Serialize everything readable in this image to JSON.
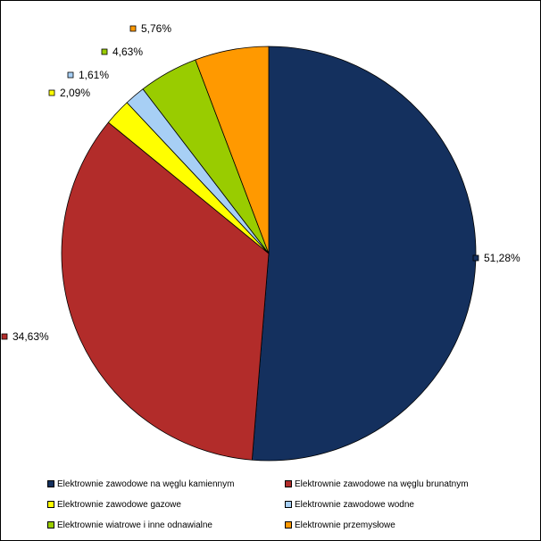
{
  "chart_data": {
    "type": "pie",
    "title": "",
    "start_angle_deg": 0,
    "direction": "clockwise",
    "legend_position": "bottom",
    "slices": [
      {
        "label": "Elektrownie zawodowe na węglu kamiennym",
        "value": 51.28,
        "value_label": "51,28%",
        "color": "#14305e"
      },
      {
        "label": "Elektrownie zawodowe na węglu brunatnym",
        "value": 34.63,
        "value_label": "34,63%",
        "color": "#b22c2a"
      },
      {
        "label": "Elektrownie zawodowe gazowe",
        "value": 2.09,
        "value_label": "2,09%",
        "color": "#ffff00"
      },
      {
        "label": "Elektrownie zawodowe wodne",
        "value": 1.61,
        "value_label": "1,61%",
        "color": "#a7cff5"
      },
      {
        "label": "Elektrownie wiatrowe i inne odnawialne",
        "value": 4.63,
        "value_label": "4,63%",
        "color": "#99cc00"
      },
      {
        "label": "Elektrownie  przemysłowe",
        "value": 5.76,
        "value_label": "5,76%",
        "color": "#ff9900"
      }
    ]
  }
}
